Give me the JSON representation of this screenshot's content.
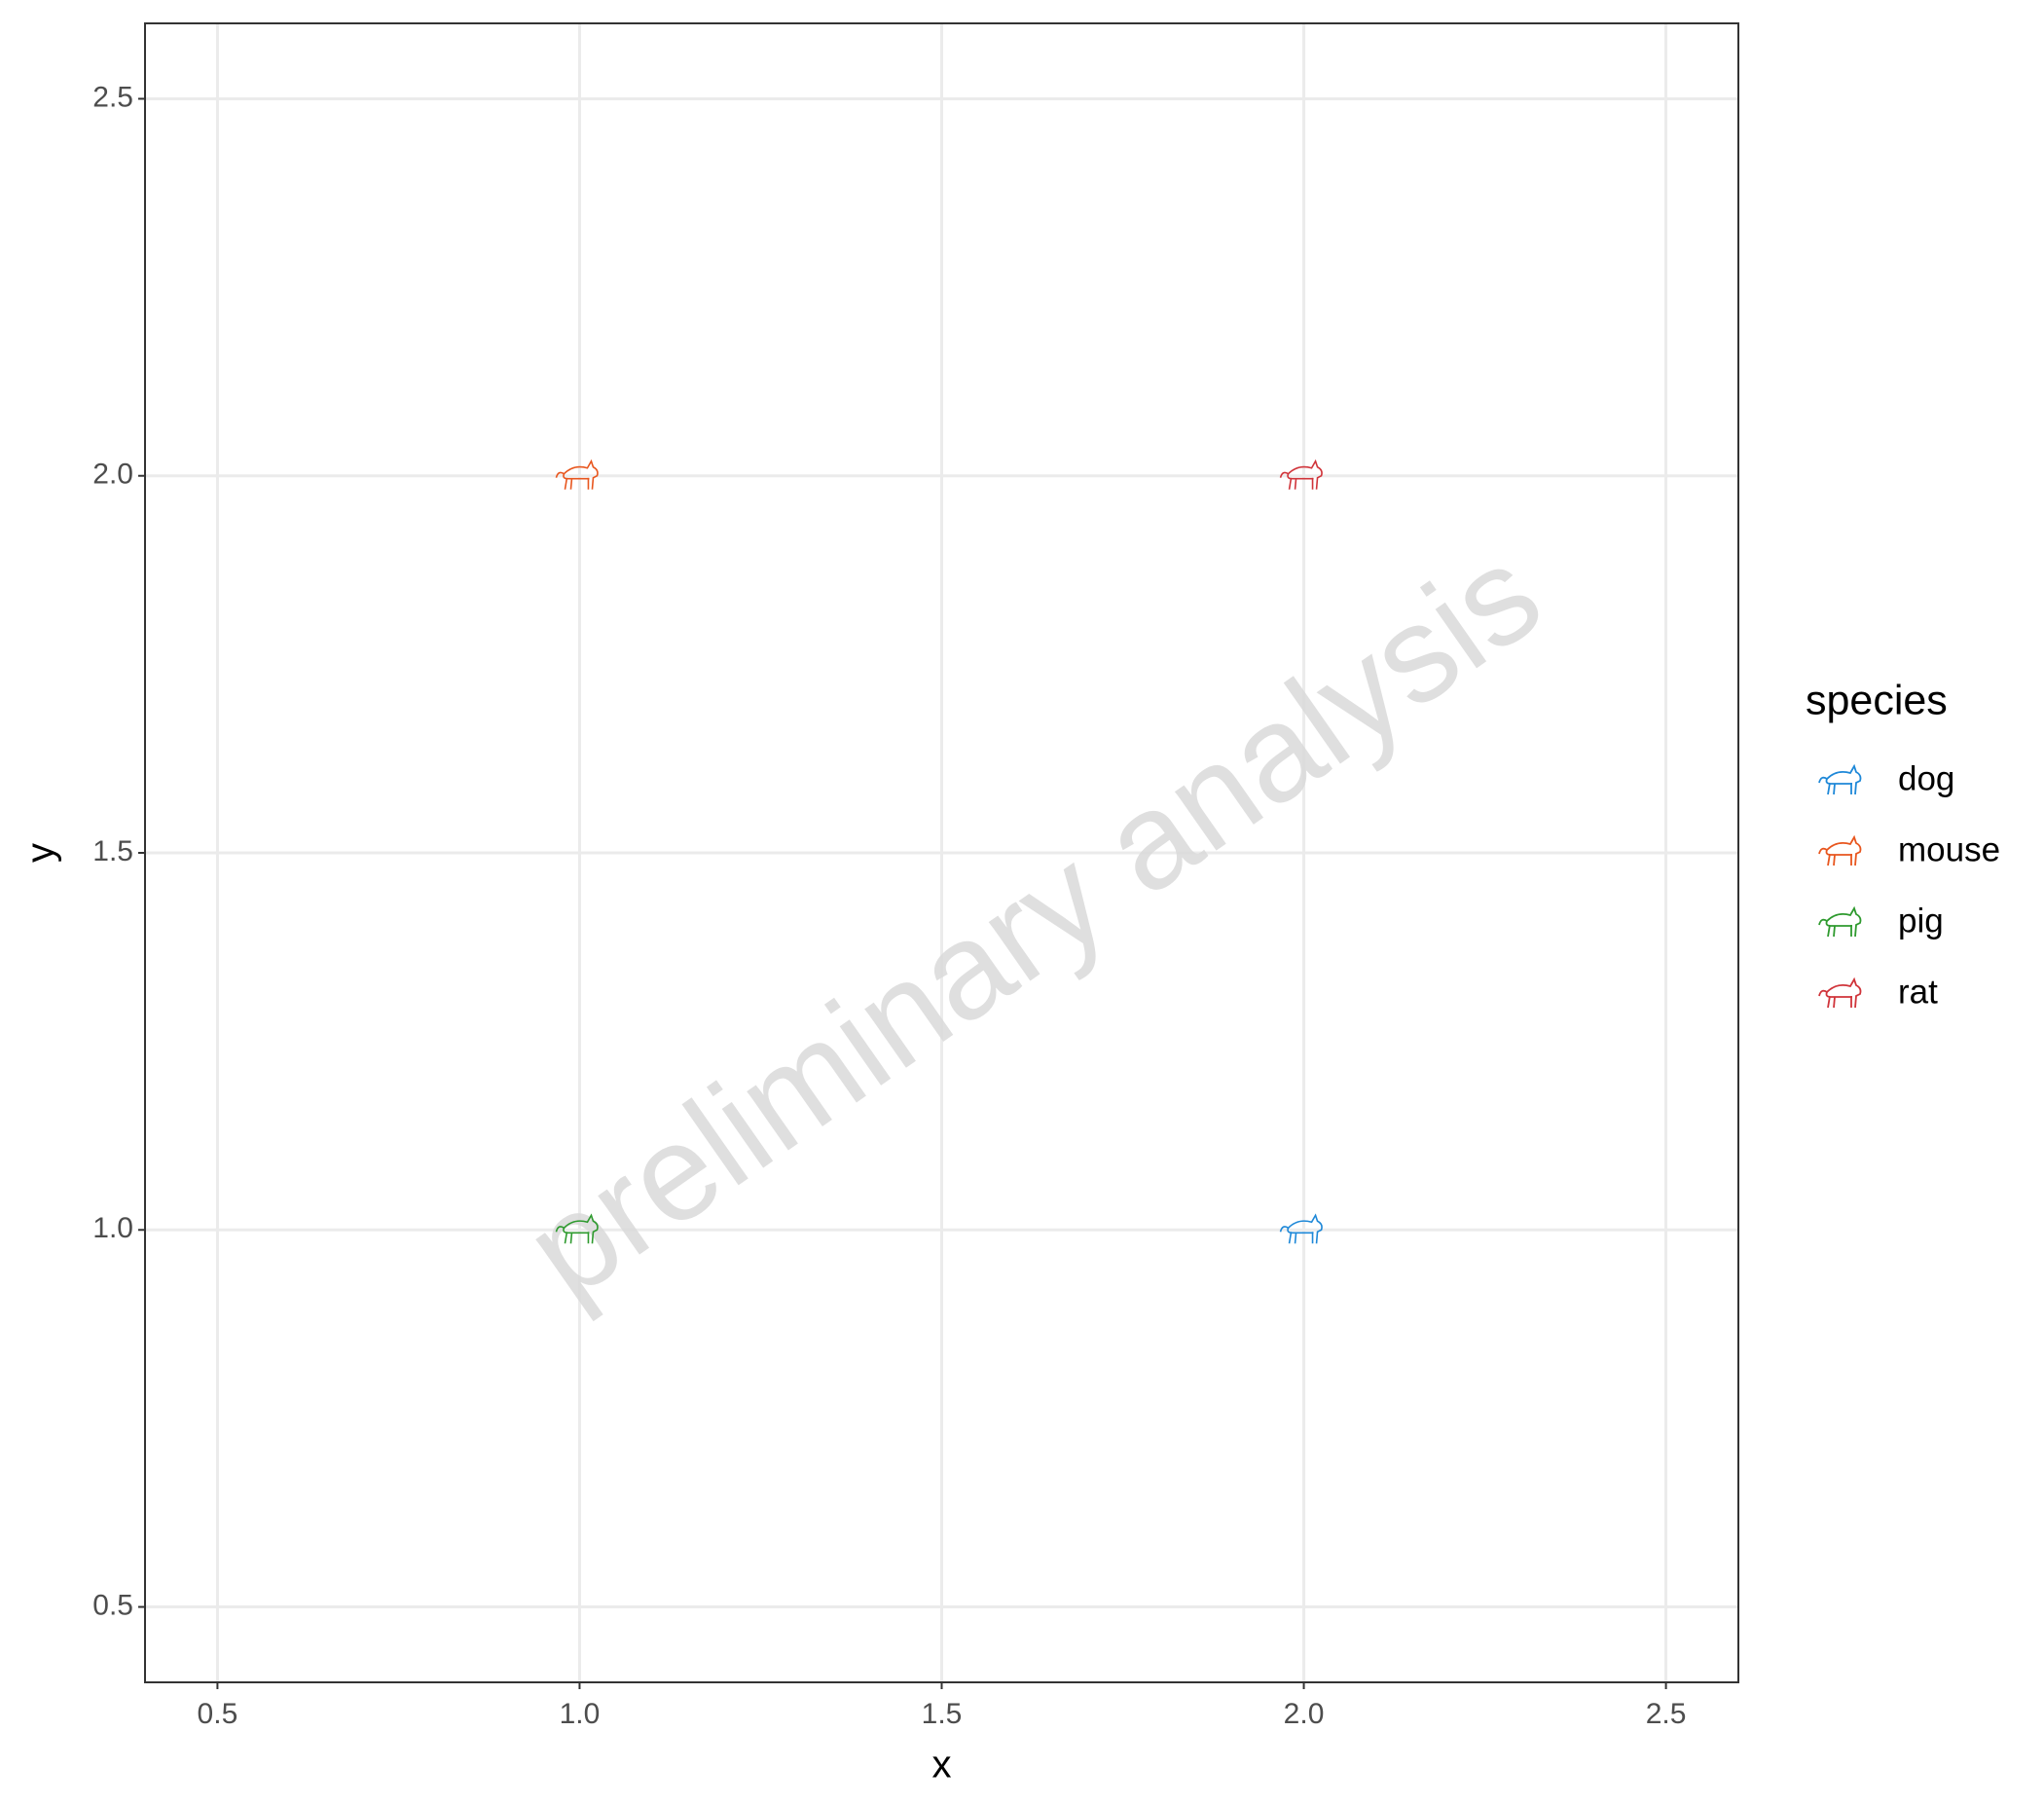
{
  "chart_data": {
    "type": "scatter",
    "x_label": "x",
    "y_label": "y",
    "watermark": "preliminary analysis",
    "legend_title": "species",
    "legend_position": "right",
    "grid": true,
    "xlim": [
      0.4,
      2.6
    ],
    "ylim": [
      0.4,
      2.6
    ],
    "xticks": [
      0.5,
      {
        "value": 1,
        "label": "1.0"
      },
      1.5,
      {
        "value": 2,
        "label": "2.0"
      },
      2.5
    ],
    "yticks": [
      0.5,
      {
        "value": 1,
        "label": "1.0"
      },
      1.5,
      {
        "value": 2,
        "label": "2.0"
      },
      2.5
    ],
    "series": [
      {
        "name": "dog",
        "color": "#1e88d8",
        "x": [
          2
        ],
        "y": [
          1
        ]
      },
      {
        "name": "mouse",
        "color": "#e8561e",
        "x": [
          1
        ],
        "y": [
          2
        ]
      },
      {
        "name": "pig",
        "color": "#2e9a2e",
        "x": [
          1
        ],
        "y": [
          1
        ]
      },
      {
        "name": "rat",
        "color": "#d0343a",
        "x": [
          2
        ],
        "y": [
          2
        ]
      }
    ]
  }
}
